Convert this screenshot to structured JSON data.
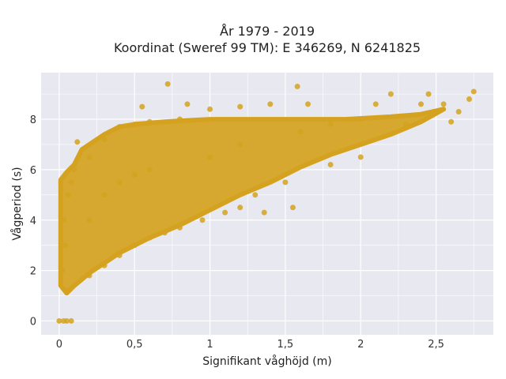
{
  "chart_data": {
    "type": "scatter",
    "title_line1": "År 1979 - 2019",
    "title_line2": "Koordinat (Sweref 99 TM): E 346269, N 6241825",
    "xlabel": "Signifikant våghöjd (m)",
    "ylabel": "Vågperiod (s)",
    "xlim": [
      -0.12,
      2.88
    ],
    "ylim": [
      -0.55,
      9.85
    ],
    "x_ticks": [
      0,
      0.5,
      1,
      1.5,
      2,
      2.5
    ],
    "x_tick_labels": [
      "0",
      "0,5",
      "1",
      "1,5",
      "2",
      "2,5"
    ],
    "y_ticks": [
      0,
      2,
      4,
      6,
      8
    ],
    "y_tick_labels": [
      "0",
      "2",
      "4",
      "6",
      "8"
    ],
    "grid": true,
    "marker_color": "#D4A21F",
    "background_color": "#E8E8F0",
    "points": [
      {
        "x": 0.05,
        "y": 1.2
      },
      {
        "x": 0.02,
        "y": 2.0
      },
      {
        "x": 0.04,
        "y": 3.0
      },
      {
        "x": 0.03,
        "y": 4.0
      },
      {
        "x": 0.06,
        "y": 5.0
      },
      {
        "x": 0.08,
        "y": 5.5
      },
      {
        "x": 0.1,
        "y": 6.0
      },
      {
        "x": 0.12,
        "y": 7.1
      },
      {
        "x": 0.2,
        "y": 1.8
      },
      {
        "x": 0.2,
        "y": 4.0
      },
      {
        "x": 0.2,
        "y": 6.5
      },
      {
        "x": 0.3,
        "y": 2.2
      },
      {
        "x": 0.3,
        "y": 5.0
      },
      {
        "x": 0.3,
        "y": 7.2
      },
      {
        "x": 0.4,
        "y": 2.6
      },
      {
        "x": 0.4,
        "y": 5.5
      },
      {
        "x": 0.4,
        "y": 7.7
      },
      {
        "x": 0.5,
        "y": 3.0
      },
      {
        "x": 0.5,
        "y": 5.8
      },
      {
        "x": 0.5,
        "y": 7.8
      },
      {
        "x": 0.55,
        "y": 8.5
      },
      {
        "x": 0.6,
        "y": 3.3
      },
      {
        "x": 0.6,
        "y": 6.0
      },
      {
        "x": 0.6,
        "y": 7.9
      },
      {
        "x": 0.7,
        "y": 3.5
      },
      {
        "x": 0.72,
        "y": 9.4
      },
      {
        "x": 0.8,
        "y": 3.7
      },
      {
        "x": 0.8,
        "y": 8.0
      },
      {
        "x": 0.85,
        "y": 8.6
      },
      {
        "x": 0.95,
        "y": 4.0
      },
      {
        "x": 1.0,
        "y": 6.5
      },
      {
        "x": 1.0,
        "y": 8.4
      },
      {
        "x": 1.1,
        "y": 4.3
      },
      {
        "x": 1.2,
        "y": 4.5
      },
      {
        "x": 1.2,
        "y": 7.0
      },
      {
        "x": 1.2,
        "y": 8.5
      },
      {
        "x": 1.3,
        "y": 5.0
      },
      {
        "x": 1.36,
        "y": 4.3
      },
      {
        "x": 1.4,
        "y": 8.6
      },
      {
        "x": 1.5,
        "y": 5.5
      },
      {
        "x": 1.55,
        "y": 4.5
      },
      {
        "x": 1.58,
        "y": 9.3
      },
      {
        "x": 1.6,
        "y": 7.5
      },
      {
        "x": 1.65,
        "y": 8.6
      },
      {
        "x": 1.8,
        "y": 6.2
      },
      {
        "x": 1.8,
        "y": 7.8
      },
      {
        "x": 2.0,
        "y": 6.5
      },
      {
        "x": 2.0,
        "y": 8.0
      },
      {
        "x": 2.1,
        "y": 8.6
      },
      {
        "x": 2.2,
        "y": 9.0
      },
      {
        "x": 2.3,
        "y": 7.8
      },
      {
        "x": 2.4,
        "y": 8.6
      },
      {
        "x": 2.45,
        "y": 9.0
      },
      {
        "x": 2.55,
        "y": 8.6
      },
      {
        "x": 2.6,
        "y": 7.9
      },
      {
        "x": 2.65,
        "y": 8.3
      },
      {
        "x": 2.72,
        "y": 8.8
      },
      {
        "x": 2.75,
        "y": 9.1
      },
      {
        "x": 0.0,
        "y": 0.0
      },
      {
        "x": 0.03,
        "y": 0.0
      },
      {
        "x": 0.05,
        "y": 0.0
      },
      {
        "x": 0.08,
        "y": 0.0
      }
    ]
  }
}
